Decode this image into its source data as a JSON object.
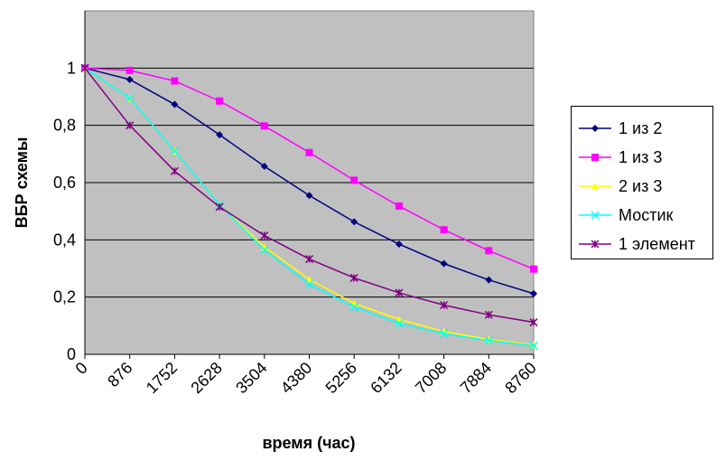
{
  "chart_data": {
    "type": "line",
    "title": "",
    "xlabel": "время (час)",
    "ylabel": "ВБР схемы",
    "x": [
      0,
      876,
      1752,
      2628,
      3504,
      4380,
      5256,
      6132,
      7008,
      7884,
      8760
    ],
    "x_tick_labels": [
      "0",
      "876",
      "1752",
      "2628",
      "3504",
      "4380",
      "5256",
      "6132",
      "7008",
      "7884",
      "8760"
    ],
    "y_tick_labels": [
      "0",
      "0,2",
      "0,4",
      "0,6",
      "0,8",
      "1"
    ],
    "y_ticks": [
      0,
      0.2,
      0.4,
      0.6,
      0.8,
      1
    ],
    "ylim": [
      0,
      1.2
    ],
    "grid": true,
    "plot_background": "#c0c0c0",
    "legend_position": "right",
    "series": [
      {
        "name": "1 из 2",
        "color": "#000080",
        "marker": "diamond",
        "values": [
          1,
          0.96,
          0.873,
          0.767,
          0.657,
          0.555,
          0.463,
          0.385,
          0.317,
          0.26,
          0.212
        ]
      },
      {
        "name": "1 из 3",
        "color": "#ff00ff",
        "marker": "square",
        "values": [
          1,
          0.992,
          0.955,
          0.885,
          0.798,
          0.705,
          0.608,
          0.518,
          0.435,
          0.362,
          0.298
        ]
      },
      {
        "name": "2 из 3",
        "color": "#ffff00",
        "marker": "triangle",
        "values": [
          1,
          0.895,
          0.71,
          0.523,
          0.375,
          0.262,
          0.178,
          0.122,
          0.08,
          0.052,
          0.033
        ]
      },
      {
        "name": "Мостик",
        "color": "#00ffff",
        "marker": "x",
        "values": [
          1,
          0.895,
          0.71,
          0.523,
          0.365,
          0.245,
          0.165,
          0.108,
          0.072,
          0.048,
          0.03
        ]
      },
      {
        "name": "1 элемент",
        "color": "#800080",
        "marker": "star",
        "values": [
          1,
          0.8,
          0.64,
          0.515,
          0.415,
          0.333,
          0.267,
          0.215,
          0.172,
          0.138,
          0.112
        ]
      }
    ]
  }
}
